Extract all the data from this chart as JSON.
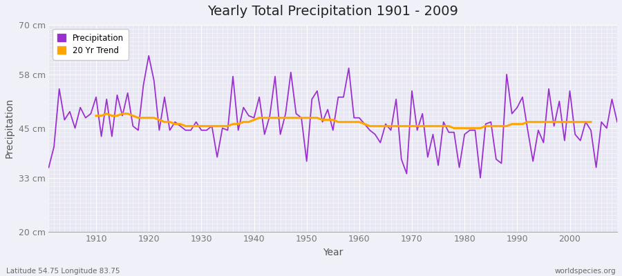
{
  "title": "Yearly Total Precipitation 1901 - 2009",
  "xlabel": "Year",
  "ylabel": "Precipitation",
  "subtitle_left": "Latitude 54.75 Longitude 83.75",
  "subtitle_right": "worldspecies.org",
  "ylim": [
    20,
    70
  ],
  "yticks": [
    20,
    33,
    45,
    58,
    70
  ],
  "ytick_labels": [
    "20 cm",
    "33 cm",
    "45 cm",
    "58 cm",
    "70 cm"
  ],
  "xlim": [
    1901,
    2009
  ],
  "precip_color": "#9B30D0",
  "trend_color": "#FFA500",
  "plot_bg_color": "#E8E8F4",
  "fig_bg_color": "#F0F0F8",
  "grid_color": "#FFFFFF",
  "legend_labels": [
    "Precipitation",
    "20 Yr Trend"
  ],
  "years": [
    1901,
    1902,
    1903,
    1904,
    1905,
    1906,
    1907,
    1908,
    1909,
    1910,
    1911,
    1912,
    1913,
    1914,
    1915,
    1916,
    1917,
    1918,
    1919,
    1920,
    1921,
    1922,
    1923,
    1924,
    1925,
    1926,
    1927,
    1928,
    1929,
    1930,
    1931,
    1932,
    1933,
    1934,
    1935,
    1936,
    1937,
    1938,
    1939,
    1940,
    1941,
    1942,
    1943,
    1944,
    1945,
    1946,
    1947,
    1948,
    1949,
    1950,
    1951,
    1952,
    1953,
    1954,
    1955,
    1956,
    1957,
    1958,
    1959,
    1960,
    1961,
    1962,
    1963,
    1964,
    1965,
    1966,
    1967,
    1968,
    1969,
    1970,
    1971,
    1972,
    1973,
    1974,
    1975,
    1976,
    1977,
    1978,
    1979,
    1980,
    1981,
    1982,
    1983,
    1984,
    1985,
    1986,
    1987,
    1988,
    1989,
    1990,
    1991,
    1992,
    1993,
    1994,
    1995,
    1996,
    1997,
    1998,
    1999,
    2000,
    2001,
    2002,
    2003,
    2004,
    2005,
    2006,
    2007,
    2008,
    2009
  ],
  "precipitation": [
    35.5,
    40.5,
    54.5,
    47.0,
    49.0,
    45.0,
    50.0,
    47.5,
    48.5,
    52.5,
    43.0,
    52.0,
    43.0,
    53.0,
    48.0,
    53.5,
    45.5,
    44.5,
    55.5,
    62.5,
    56.5,
    44.5,
    52.5,
    44.5,
    46.5,
    45.5,
    44.5,
    44.5,
    46.5,
    44.5,
    44.5,
    45.5,
    38.0,
    45.0,
    44.5,
    57.5,
    44.5,
    50.0,
    48.0,
    47.5,
    52.5,
    43.5,
    48.0,
    57.5,
    43.5,
    48.5,
    58.5,
    48.5,
    47.5,
    37.0,
    52.0,
    54.0,
    46.5,
    49.5,
    44.5,
    52.5,
    52.5,
    59.5,
    47.5,
    47.5,
    46.0,
    44.5,
    43.5,
    41.5,
    46.0,
    44.5,
    52.0,
    37.5,
    34.0,
    54.0,
    44.5,
    48.5,
    38.0,
    43.5,
    36.0,
    46.5,
    44.0,
    44.0,
    35.5,
    43.5,
    44.5,
    44.5,
    33.0,
    46.0,
    46.5,
    37.5,
    36.5,
    58.0,
    48.5,
    50.0,
    52.5,
    44.5,
    37.0,
    44.5,
    41.5,
    54.5,
    45.5,
    51.5,
    42.0,
    54.0,
    43.5,
    42.0,
    46.5,
    44.5,
    35.5,
    46.5,
    45.0,
    52.0,
    46.5
  ],
  "trend": [
    null,
    null,
    null,
    null,
    null,
    null,
    null,
    null,
    null,
    48.0,
    48.0,
    48.5,
    48.0,
    48.0,
    48.5,
    48.5,
    48.0,
    47.5,
    47.5,
    47.5,
    47.5,
    47.0,
    46.5,
    46.5,
    46.0,
    46.0,
    45.5,
    45.5,
    45.5,
    45.5,
    45.5,
    45.5,
    45.5,
    45.5,
    45.5,
    46.0,
    46.0,
    46.5,
    46.5,
    47.0,
    47.5,
    47.5,
    47.5,
    47.5,
    47.5,
    47.5,
    47.5,
    47.5,
    47.5,
    47.5,
    47.5,
    47.5,
    47.0,
    47.0,
    47.0,
    46.5,
    46.5,
    46.5,
    46.5,
    46.5,
    46.0,
    45.5,
    45.5,
    45.5,
    45.5,
    45.5,
    45.5,
    45.5,
    45.5,
    45.5,
    45.5,
    45.5,
    45.5,
    45.5,
    45.5,
    45.5,
    45.5,
    45.0,
    45.0,
    45.0,
    45.0,
    45.0,
    45.0,
    45.5,
    45.5,
    45.5,
    45.5,
    45.5,
    46.0,
    46.0,
    46.0,
    46.5,
    46.5,
    46.5,
    46.5,
    46.5,
    46.5,
    46.5,
    46.5,
    46.5,
    46.5,
    46.5,
    46.5,
    46.5
  ]
}
